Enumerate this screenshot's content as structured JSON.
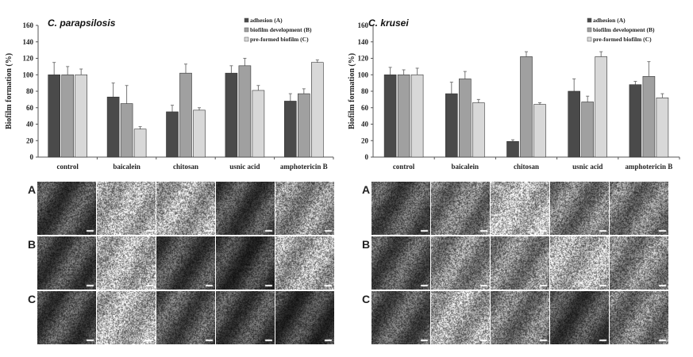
{
  "chart_data": [
    {
      "type": "bar",
      "title": "C. parapsilosis",
      "ylabel": "Biofilm formation (%)",
      "xlabel": "",
      "ylim": [
        0,
        160
      ],
      "yticks": [
        0,
        20,
        40,
        60,
        80,
        100,
        120,
        140,
        160
      ],
      "categories": [
        "control",
        "baicalein",
        "chitosan",
        "usnic acid",
        "amphotericin B"
      ],
      "legend_position": "top-right",
      "grid": false,
      "series": [
        {
          "name": "adhesion (A)",
          "color": "#4a4a4a",
          "values": [
            100,
            73,
            55,
            102,
            68
          ],
          "errors": [
            15,
            17,
            8,
            9,
            9
          ]
        },
        {
          "name": "biofilm development (B)",
          "color": "#a0a0a0",
          "values": [
            100,
            65,
            102,
            111,
            77
          ],
          "errors": [
            10,
            22,
            11,
            9,
            6
          ]
        },
        {
          "name": "pre-formed biofilm (C)",
          "color": "#d8d8d8",
          "values": [
            100,
            34,
            57,
            81,
            115
          ],
          "errors": [
            7,
            3,
            3,
            6,
            3
          ]
        }
      ]
    },
    {
      "type": "bar",
      "title": "C. krusei",
      "ylabel": "Biofilm formation (%)",
      "xlabel": "",
      "ylim": [
        0,
        160
      ],
      "yticks": [
        0,
        20,
        40,
        60,
        80,
        100,
        120,
        140,
        160
      ],
      "categories": [
        "control",
        "baicalein",
        "chitosan",
        "usnic acid",
        "amphotericin B"
      ],
      "legend_position": "top-right",
      "grid": false,
      "series": [
        {
          "name": "adhesion (A)",
          "color": "#4a4a4a",
          "values": [
            100,
            77,
            19,
            80,
            88
          ],
          "errors": [
            9,
            14,
            2,
            15,
            4
          ]
        },
        {
          "name": "biofilm development (B)",
          "color": "#a0a0a0",
          "values": [
            100,
            95,
            122,
            67,
            98
          ],
          "errors": [
            6,
            9,
            6,
            7,
            18
          ]
        },
        {
          "name": "pre-formed biofilm (C)",
          "color": "#d8d8d8",
          "values": [
            100,
            66,
            64,
            122,
            72
          ],
          "errors": [
            8,
            4,
            2,
            6,
            5
          ]
        }
      ]
    }
  ],
  "micrographs": {
    "row_labels": [
      "A",
      "B",
      "C"
    ]
  }
}
